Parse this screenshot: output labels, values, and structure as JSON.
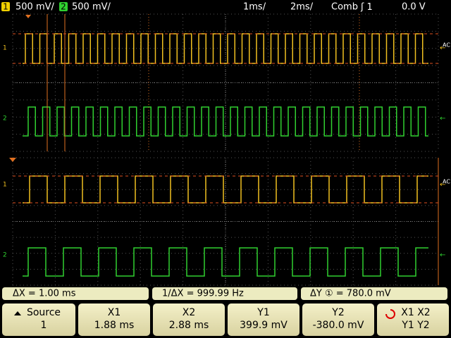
{
  "status": {
    "ch1_badge": "1",
    "ch1_scale": "500 mV/",
    "ch2_badge": "2",
    "ch2_scale": "500 mV/",
    "main_timebase": "1ms/",
    "zoom_timebase": "2ms/",
    "trigger_mode": "Comb",
    "trigger_source": "1",
    "trigger_level": "0.0 V"
  },
  "markers": {
    "ch1": "1",
    "ch2": "2",
    "coupling": "AC"
  },
  "measurements": {
    "delta_x": "ΔX =  1.00 ms",
    "inverse_delta_x": "1/ΔX = 999.99  Hz",
    "delta_y": "ΔY ① = 780.0 mV"
  },
  "softkeys": {
    "source_label": "Source",
    "source_value": "1",
    "x1_label": "X1",
    "x1_value": "1.88 ms",
    "x2_label": "X2",
    "x2_value": "2.88 ms",
    "y1_label": "Y1",
    "y1_value": "399.9 mV",
    "y2_label": "Y2",
    "y2_value": "-380.0 mV",
    "mode_top": "X1  X2",
    "mode_bottom": "Y1  Y2"
  }
}
